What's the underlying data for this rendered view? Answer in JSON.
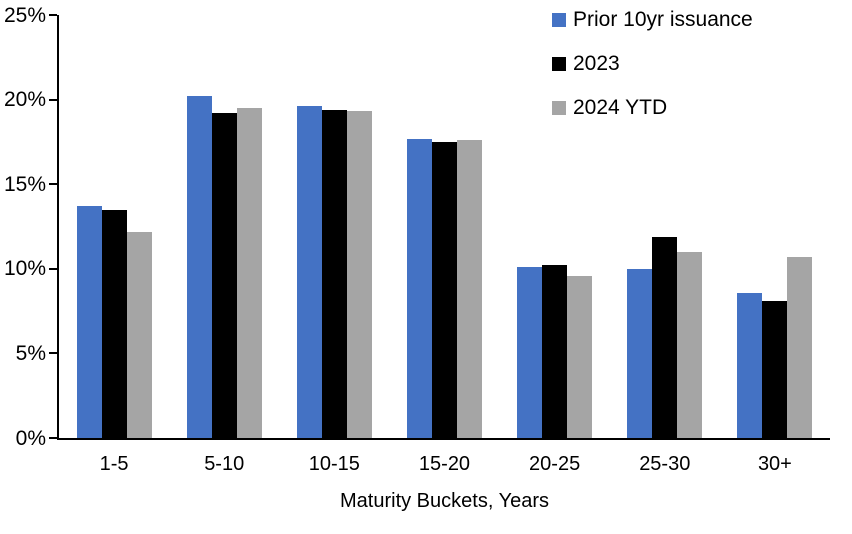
{
  "chart_data": {
    "type": "bar",
    "title": "",
    "xlabel": "Maturity Buckets, Years",
    "ylabel": "",
    "ylim": [
      0,
      25
    ],
    "ytick_step": 5,
    "ytick_labels": [
      "0%",
      "5%",
      "10%",
      "15%",
      "20%",
      "25%"
    ],
    "grid": false,
    "legend_position": "top-right-inside",
    "categories": [
      "1-5",
      "5-10",
      "10-15",
      "15-20",
      "20-25",
      "25-30",
      "30+"
    ],
    "series": [
      {
        "name": "Prior 10yr issuance",
        "color": "#4472C4",
        "values": [
          13.7,
          20.2,
          19.6,
          17.7,
          10.1,
          10.0,
          8.6
        ]
      },
      {
        "name": "2023",
        "color": "#000000",
        "values": [
          13.5,
          19.2,
          19.4,
          17.5,
          10.2,
          11.9,
          8.1
        ]
      },
      {
        "name": "2024 YTD",
        "color": "#A5A5A5",
        "values": [
          12.2,
          19.5,
          19.3,
          17.6,
          9.6,
          11.0,
          10.7
        ]
      }
    ]
  }
}
